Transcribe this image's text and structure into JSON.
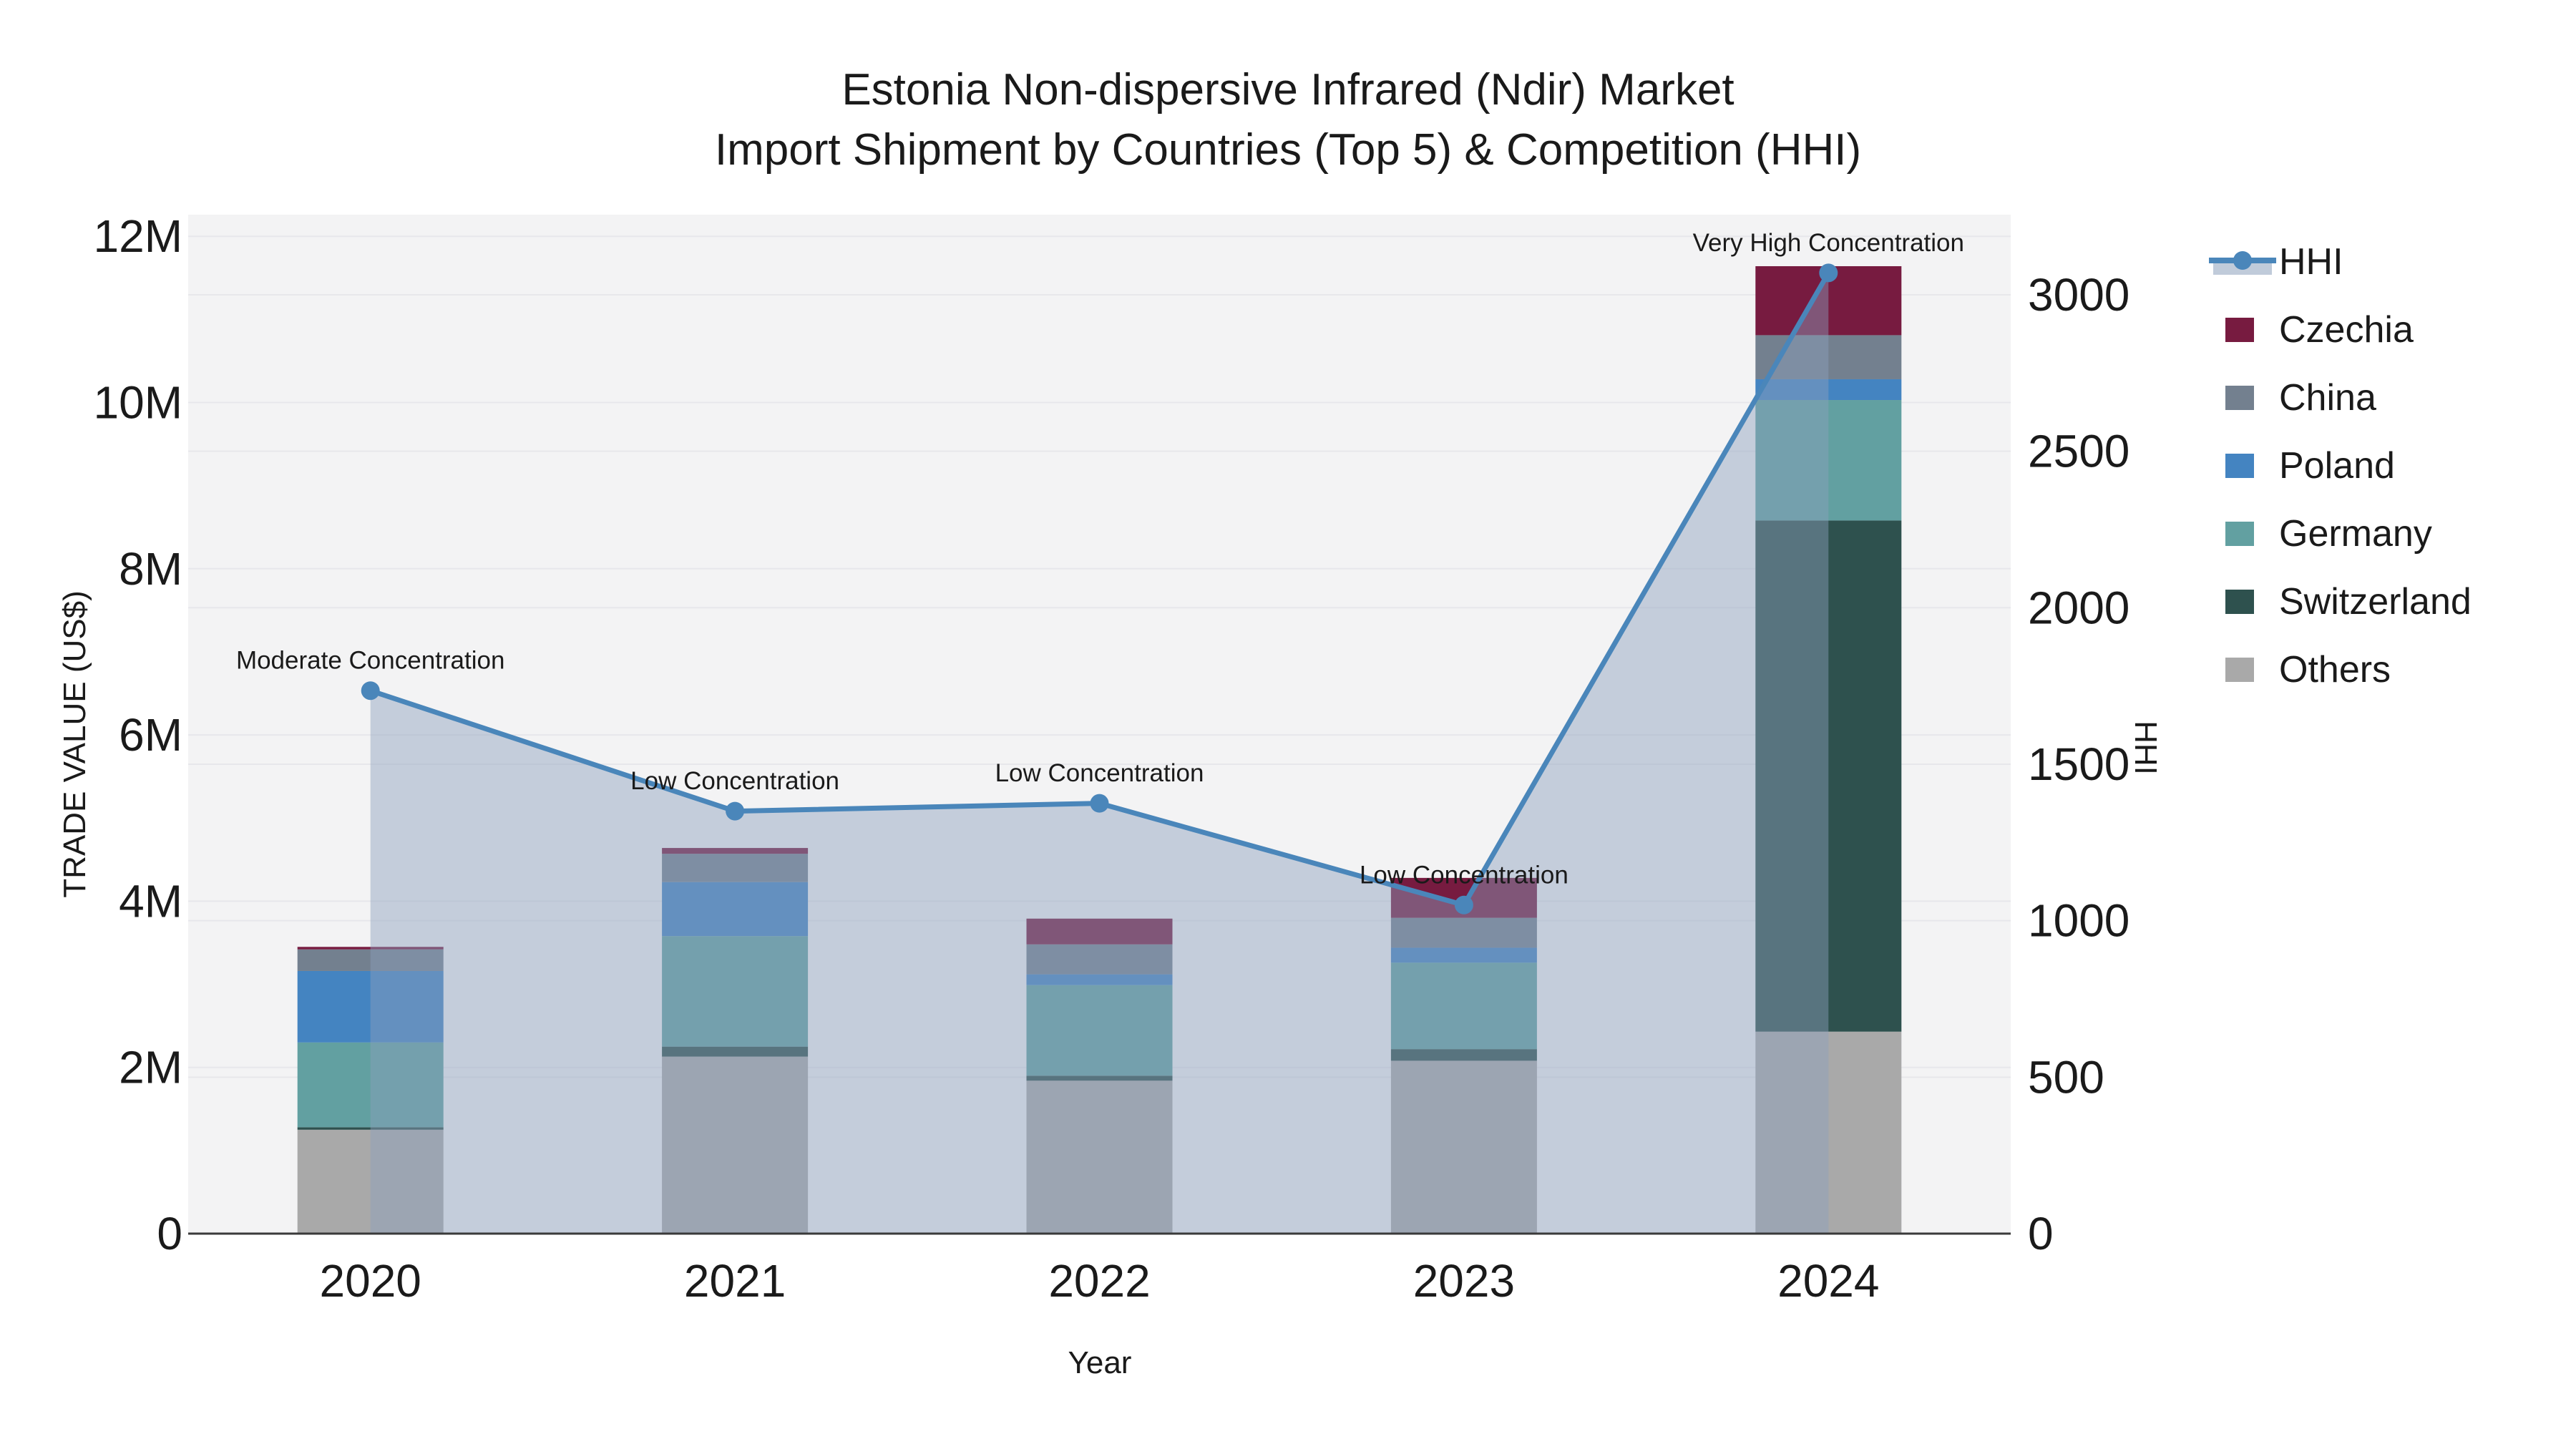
{
  "title": {
    "line1": "Estonia Non-dispersive Infrared (Ndir) Market",
    "line2": "Import Shipment by Countries (Top 5) & Competition (HHI)"
  },
  "axes": {
    "x_label": "Year",
    "y_left_label": "TRADE VALUE (US$)",
    "y_right_label": "HHI"
  },
  "legend": {
    "items": [
      {
        "label": "HHI",
        "type": "line",
        "color": "#4a86ba"
      },
      {
        "label": "Czechia",
        "type": "swatch",
        "color": "#771b40"
      },
      {
        "label": "China",
        "type": "swatch",
        "color": "#73808f"
      },
      {
        "label": "Poland",
        "type": "swatch",
        "color": "#4484c1"
      },
      {
        "label": "Germany",
        "type": "swatch",
        "color": "#62a0a1"
      },
      {
        "label": "Switzerland",
        "type": "swatch",
        "color": "#2e514e"
      },
      {
        "label": "Others",
        "type": "swatch",
        "color": "#a9a9a9"
      }
    ]
  },
  "chart_data": {
    "type": "stacked-bar + line (dual axis)",
    "categories": [
      "2020",
      "2021",
      "2022",
      "2023",
      "2024"
    ],
    "stack_order_bottom_to_top": [
      "Others",
      "Switzerland",
      "Germany",
      "Poland",
      "China",
      "Czechia"
    ],
    "series": [
      {
        "name": "Others",
        "color": "#a9a9a9",
        "values_usd_m": [
          1.25,
          2.13,
          1.84,
          2.08,
          2.43
        ]
      },
      {
        "name": "Switzerland",
        "color": "#2e514e",
        "values_usd_m": [
          0.03,
          0.12,
          0.06,
          0.14,
          6.15
        ]
      },
      {
        "name": "Germany",
        "color": "#62a0a1",
        "values_usd_m": [
          1.02,
          1.33,
          1.09,
          1.04,
          1.45
        ]
      },
      {
        "name": "Poland",
        "color": "#4484c1",
        "values_usd_m": [
          0.86,
          0.65,
          0.13,
          0.18,
          0.25
        ]
      },
      {
        "name": "China",
        "color": "#73808f",
        "values_usd_m": [
          0.26,
          0.34,
          0.36,
          0.36,
          0.53
        ]
      },
      {
        "name": "Czechia",
        "color": "#771b40",
        "values_usd_m": [
          0.03,
          0.07,
          0.31,
          0.48,
          0.83
        ]
      }
    ],
    "bar_totals_usd_m": [
      3.45,
      4.64,
      3.79,
      4.28,
      11.64
    ],
    "hhi_line": {
      "name": "HHI",
      "color": "#4a86ba",
      "area_fill": "rgba(140,160,188,0.45)",
      "values": [
        1735,
        1350,
        1375,
        1050,
        3070
      ]
    },
    "annotations": [
      "Moderate Concentration",
      "Low Concentration",
      "Low Concentration",
      "Low Concentration",
      "Very High Concentration"
    ],
    "y_left": {
      "tick_labels": [
        "0",
        "2M",
        "4M",
        "6M",
        "8M",
        "10M",
        "12M"
      ],
      "tick_values_millions": [
        0,
        2,
        4,
        6,
        8,
        10,
        12
      ],
      "axis_max_millions": 12.26
    },
    "y_right": {
      "tick_labels": [
        "0",
        "500",
        "1000",
        "1500",
        "2000",
        "2500",
        "3000"
      ],
      "tick_values": [
        0,
        500,
        1000,
        1500,
        2000,
        2500,
        3000
      ],
      "axis_max": 3256
    },
    "grid": true,
    "legend_position": "right"
  },
  "style": {
    "plot_bg": "#f3f3f4",
    "grid_color": "#e7e7eb",
    "axis_line_color": "#3a3a3a",
    "text_color": "#1a1a1a"
  }
}
